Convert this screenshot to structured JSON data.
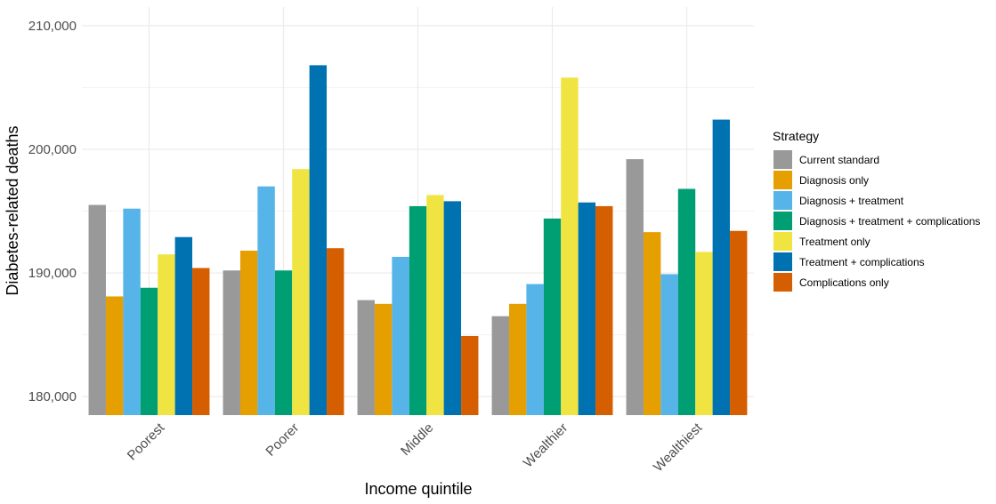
{
  "chart_data": {
    "type": "bar",
    "title": "",
    "xlabel": "Income quintile",
    "ylabel": "Diabetes-related deaths",
    "ylim": [
      178500,
      211500
    ],
    "yticks": [
      180000,
      190000,
      200000,
      210000
    ],
    "ytick_labels": [
      "180,000",
      "190,000",
      "200,000",
      "210,000"
    ],
    "categories": [
      "Poorest",
      "Poorer",
      "Middle",
      "Wealthier",
      "Wealthiest"
    ],
    "grid": true,
    "legend_title": "Strategy",
    "legend_position": "right",
    "series": [
      {
        "name": "Current standard",
        "color": "#999999",
        "values": [
          195500,
          190200,
          187800,
          186500,
          199200
        ]
      },
      {
        "name": "Diagnosis only",
        "color": "#E69F00",
        "values": [
          188100,
          191800,
          187500,
          187500,
          193300
        ]
      },
      {
        "name": "Diagnosis + treatment",
        "color": "#56B4E9",
        "values": [
          195200,
          197000,
          191300,
          189100,
          189900
        ]
      },
      {
        "name": "Diagnosis + treatment + complications",
        "color": "#009E73",
        "values": [
          188800,
          190200,
          195400,
          194400,
          196800
        ]
      },
      {
        "name": "Treatment only",
        "color": "#F0E442",
        "values": [
          191500,
          198400,
          196300,
          205800,
          191700
        ]
      },
      {
        "name": "Treatment + complications",
        "color": "#0072B2",
        "values": [
          192900,
          206800,
          195800,
          195700,
          202400
        ]
      },
      {
        "name": "Complications only",
        "color": "#D55E00",
        "values": [
          190400,
          192000,
          184900,
          195400,
          193400
        ]
      }
    ]
  }
}
